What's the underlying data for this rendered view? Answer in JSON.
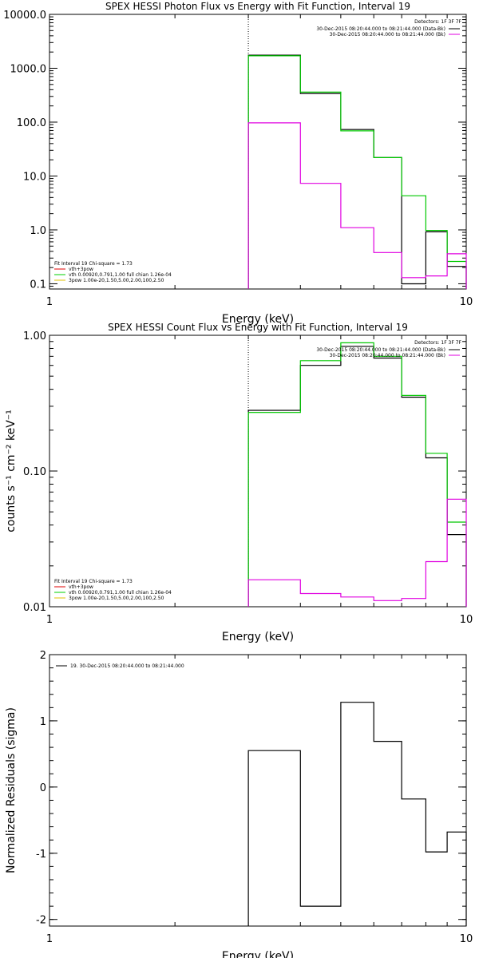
{
  "chart_data": [
    {
      "type": "line",
      "title": "SPEX HESSI Photon Flux vs Energy with Fit Function, Interval 19",
      "xlabel": "Energy (keV)",
      "ylabel": "",
      "xscale": "log",
      "yscale": "log",
      "xlim": [
        1,
        10
      ],
      "ylim": [
        0.08,
        10000
      ],
      "xticks": [
        {
          "v": 1,
          "label": "1"
        },
        {
          "v": 10,
          "label": "10"
        }
      ],
      "yticks": [
        {
          "v": 0.1,
          "label": "0.1"
        },
        {
          "v": 1,
          "label": "1.0"
        },
        {
          "v": 10,
          "label": "10.0"
        },
        {
          "v": 100,
          "label": "100.0"
        },
        {
          "v": 1000,
          "label": "1000.0"
        },
        {
          "v": 10000,
          "label": "10000.0"
        }
      ],
      "vline": 3.0,
      "top_legend": {
        "header": "Detectors: 1F 3F 7F",
        "entries": [
          {
            "text": "30-Dec-2015 08:20:44.000 to 08:21:44.000 (Data-Bk)",
            "color": "#000000"
          },
          {
            "text": "30-Dec-2015 08:20:44.000 to 08:21:44.000 (Bk)",
            "color": "#e000e0"
          }
        ]
      },
      "fit_legend": {
        "header": "Fit Interval 19   Chi-square = 1.73",
        "entries": [
          {
            "text": "vth+3pow",
            "color": "#e00000"
          },
          {
            "text": "vth 0.00920,0.791,1.00  full chian 1.26e-04",
            "color": "#00d000"
          },
          {
            "text": "3pow 1.00e-20,1.50,5.00,2.00,100,2.50",
            "color": "#e0c000"
          }
        ]
      },
      "edges": [
        3.0,
        4.0,
        5.0,
        6.0,
        7.0,
        8.0,
        9.0,
        10.0
      ],
      "series": [
        {
          "color": "#000000",
          "values": [
            1750,
            340,
            73,
            22,
            0.1,
            0.92,
            0.21
          ],
          "mode": "full"
        },
        {
          "color": "#00c800",
          "values": [
            1700,
            360,
            69,
            22,
            4.3,
            0.98,
            0.26
          ],
          "mode": "full"
        },
        {
          "color": "#e000e0",
          "values": [
            97,
            7.3,
            1.1,
            0.38,
            0.13,
            0.14,
            0.36
          ],
          "mode": "full"
        }
      ]
    },
    {
      "type": "line",
      "title": "SPEX HESSI Count Flux vs Energy with Fit Function, Interval 19",
      "xlabel": "Energy (keV)",
      "ylabel": "counts s⁻¹ cm⁻² keV⁻¹",
      "xscale": "log",
      "yscale": "log",
      "xlim": [
        1,
        10
      ],
      "ylim": [
        0.01,
        1.0
      ],
      "xticks": [
        {
          "v": 1,
          "label": "1"
        },
        {
          "v": 10,
          "label": "10"
        }
      ],
      "yticks": [
        {
          "v": 0.01,
          "label": "0.01"
        },
        {
          "v": 0.1,
          "label": "0.10"
        },
        {
          "v": 1.0,
          "label": "1.00"
        }
      ],
      "vline": 3.0,
      "top_legend": {
        "header": "Detectors: 1F 3F 7F",
        "entries": [
          {
            "text": "30-Dec-2015 08:20:44.000 to 08:21:44.000 (Data-Bk)",
            "color": "#000000"
          },
          {
            "text": "30-Dec-2015 08:20:44.000 to 08:21:44.000 (Bk)",
            "color": "#e000e0"
          }
        ]
      },
      "fit_legend": {
        "header": "Fit Interval 19   Chi-square = 1.73",
        "entries": [
          {
            "text": "vth+3pow",
            "color": "#e00000"
          },
          {
            "text": "vth 0.00920,0.791,1.00  full chian 1.26e-04",
            "color": "#00d000"
          },
          {
            "text": "3pow 1.00e-20,1.50,5.00,2.00,100,2.50",
            "color": "#e0c000"
          }
        ]
      },
      "edges": [
        3.0,
        4.0,
        5.0,
        6.0,
        7.0,
        8.0,
        9.0,
        10.0
      ],
      "series": [
        {
          "color": "#000000",
          "values": [
            0.28,
            0.6,
            0.83,
            0.68,
            0.35,
            0.125,
            0.034
          ],
          "mode": "full"
        },
        {
          "color": "#00c800",
          "values": [
            0.27,
            0.65,
            0.88,
            0.7,
            0.36,
            0.135,
            0.042
          ],
          "mode": "full"
        },
        {
          "color": "#e000e0",
          "values": [
            0.0158,
            0.0125,
            0.0118,
            0.0111,
            0.0115,
            0.0215,
            0.062
          ],
          "mode": "full"
        }
      ]
    },
    {
      "type": "line",
      "title": "",
      "xlabel": "Energy (keV)",
      "ylabel": "Normalized Residuals (sigma)",
      "xscale": "log",
      "yscale": "linear",
      "xlim": [
        1,
        10
      ],
      "ylim": [
        -2.1,
        2.0
      ],
      "xticks": [
        {
          "v": 1,
          "label": "1"
        },
        {
          "v": 10,
          "label": "10"
        }
      ],
      "yticks": [
        {
          "v": -2,
          "label": "-2"
        },
        {
          "v": -1,
          "label": "-1"
        },
        {
          "v": 0,
          "label": "0"
        },
        {
          "v": 1,
          "label": "1"
        },
        {
          "v": 2,
          "label": "2"
        }
      ],
      "top_legend": {
        "header": "",
        "entries": [
          {
            "text": "19. 30-Dec-2015 08:20:44.000 to 08:21:44.000",
            "color": "#000000"
          }
        ]
      },
      "edges": [
        3.0,
        4.0,
        5.0,
        6.0,
        7.0,
        8.0,
        9.0,
        10.0
      ],
      "series": [
        {
          "color": "#000000",
          "values": [
            0.55,
            -1.8,
            1.28,
            0.69,
            -0.18,
            -0.98,
            -0.68
          ],
          "mode": "full"
        }
      ]
    }
  ]
}
